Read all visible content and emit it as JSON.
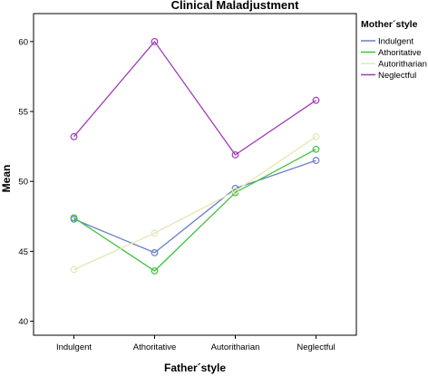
{
  "chart_data": {
    "type": "line",
    "title": "Clinical Maladjustment",
    "xlabel": "Father´style",
    "ylabel": "Mean",
    "categories": [
      "Indulgent",
      "Athoritative",
      "Autoritharian",
      "Neglectful"
    ],
    "ylim": [
      39,
      62
    ],
    "yticks": [
      40,
      45,
      50,
      55,
      60
    ],
    "grid": false,
    "legend": {
      "title": "Mother´style",
      "placement": "right"
    },
    "series": [
      {
        "name": "Indulgent",
        "color": "#6a7ec8",
        "values": [
          47.3,
          44.9,
          49.5,
          51.5
        ]
      },
      {
        "name": "Athoritative",
        "color": "#3ec23e",
        "values": [
          47.4,
          43.6,
          49.2,
          52.3
        ]
      },
      {
        "name": "Autoritharian",
        "color": "#e6e6b4",
        "values": [
          43.7,
          46.3,
          49.3,
          53.2
        ]
      },
      {
        "name": "Neglectful",
        "color": "#a03cb4",
        "values": [
          53.2,
          60.0,
          51.9,
          55.8
        ]
      }
    ]
  }
}
